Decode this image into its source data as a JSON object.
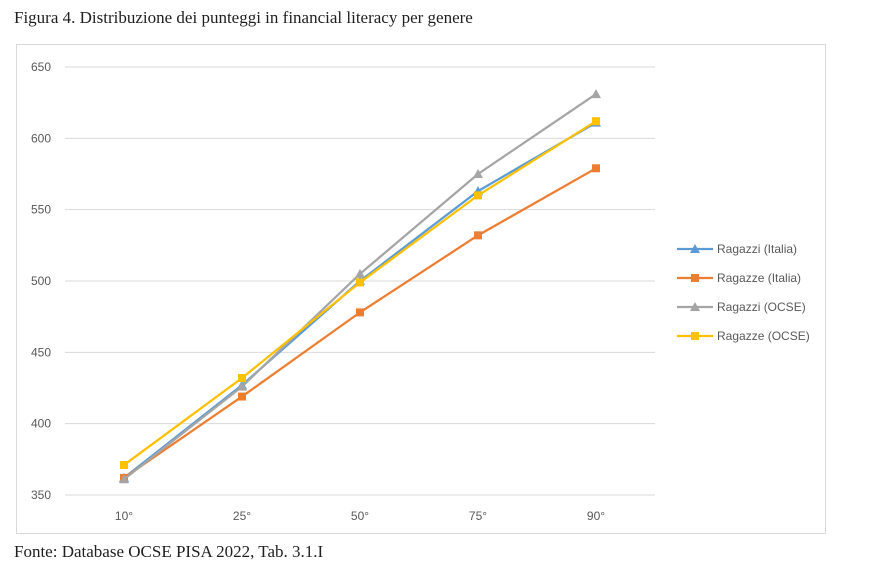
{
  "figure": {
    "title": "Figura 4. Distribuzione dei punteggi in financial literacy per genere",
    "source": "Fonte: Database OCSE PISA 2022, Tab. 3.1.I"
  },
  "chart_data": {
    "type": "line",
    "title": "",
    "xlabel": "",
    "ylabel": "",
    "categories": [
      "10°",
      "25°",
      "50°",
      "75°",
      "90°"
    ],
    "ylim": [
      350,
      650
    ],
    "yticks": [
      350,
      400,
      450,
      500,
      550,
      600,
      650
    ],
    "grid": true,
    "legend_position": "right",
    "series": [
      {
        "name": "Ragazzi (Italia)",
        "values": [
          362,
          427,
          500,
          563,
          611
        ],
        "color": "#5B9BD5",
        "marker": "triangle"
      },
      {
        "name": "Ragazze (Italia)",
        "values": [
          362,
          419,
          478,
          532,
          579
        ],
        "color": "#ED7D31",
        "marker": "square"
      },
      {
        "name": "Ragazzi (OCSE)",
        "values": [
          361,
          426,
          505,
          575,
          631
        ],
        "color": "#A5A5A5",
        "marker": "triangle"
      },
      {
        "name": "Ragazze (OCSE)",
        "values": [
          371,
          432,
          499,
          560,
          612
        ],
        "color": "#FFC000",
        "marker": "square"
      }
    ]
  }
}
